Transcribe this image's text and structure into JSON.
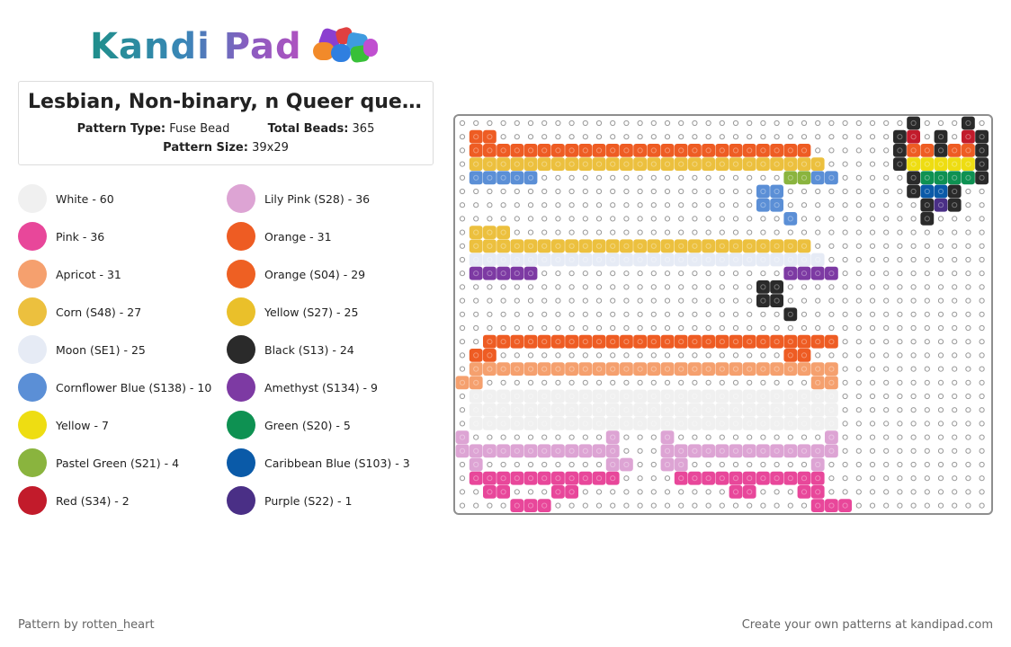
{
  "logo": {
    "text": "Kandi Pad"
  },
  "pattern": {
    "title": "Lesbian, Non-binary, n Queer que...",
    "type_label": "Pattern Type:",
    "type_value": "Fuse Bead",
    "beads_label": "Total Beads:",
    "beads_value": "365",
    "size_label": "Pattern Size:",
    "size_value": "39x29"
  },
  "legend": [
    {
      "label": "White - 60",
      "color": "#f0f0f0"
    },
    {
      "label": "Pink - 36",
      "color": "#e8479a"
    },
    {
      "label": "Apricot - 31",
      "color": "#f5a06e"
    },
    {
      "label": "Corn (S48) - 27",
      "color": "#ecc03e"
    },
    {
      "label": "Moon (SE1) - 25",
      "color": "#e6ebf5"
    },
    {
      "label": "Cornflower Blue (S138) - 10",
      "color": "#5b8fd6"
    },
    {
      "label": "Yellow - 7",
      "color": "#eedd12"
    },
    {
      "label": "Pastel Green (S21) - 4",
      "color": "#8ab43e"
    },
    {
      "label": "Red (S34) - 2",
      "color": "#c21b2b"
    },
    {
      "label": "Lily Pink (S28) - 36",
      "color": "#dda4d4"
    },
    {
      "label": "Orange - 31",
      "color": "#ee5c23"
    },
    {
      "label": "Orange (S04) - 29",
      "color": "#ee6023"
    },
    {
      "label": "Yellow (S27) - 25",
      "color": "#eac02a"
    },
    {
      "label": "Black (S13) - 24",
      "color": "#2a2a2a"
    },
    {
      "label": "Amethyst (S134) - 9",
      "color": "#7d3aa3"
    },
    {
      "label": "Green (S20) - 5",
      "color": "#0e9152"
    },
    {
      "label": "Caribbean Blue (S103) - 3",
      "color": "#0a5aa8"
    },
    {
      "label": "Purple (S22) - 1",
      "color": "#4a2f86"
    }
  ],
  "board_rows": [
    ".................................K...K..",
    ".OO.............................KR.K.RK.",
    ".OOOOOOOOOOOOOOOOOOOOOOOOO......KAAKAAK.",
    ".YYYYYYYYYYYYYYYYYYYYYYYYYY.....KYYYYYK.",
    ".BBBBB..................GGBB.....KGGGGK..",
    "......................BB.........KNNK...",
    "......................BB..........KPK...",
    "........................B.........K.....",
    ".YYY....................................",
    ".YYYYYYYYYYYYYYYYYYYYYYYYY..............",
    ".MMMMMMMMMMMMMMMMMMMMMMMMMM.............",
    ".VVVVV..................VVVV............",
    "......................KK................",
    "......................KK................",
    "........................K...............",
    "........................................",
    "..OOOOOOOOOOOOOOOOOOOOOOOOOO............",
    ".OO.....................OO..............",
    ".AAAAAAAAAAAAAAAAAAAAAAAAAAA............",
    "AA........................AA............",
    ".WWWWWWWWWWWWWWWWWWWWWWWWWWW............",
    ".WWWWWWWWWWWWWWWWWWWWWWWWWWW............",
    ".WWWWWWWWWWWWWWWWWWWWWWWWWWW............",
    "L..........L...L...........L............",
    "LLLLLLLLLLLL...LLLLLLLLLLLLL............",
    ".L.........LL..LL.........L.............",
    ".PPPPPPPPPPP....PPPPPPPPPPP.............",
    "..PP...PP...........PP...PP.............",
    "....PPP...................PPP..........."
  ],
  "footer": {
    "left": "Pattern by rotten_heart",
    "right": "Create your own patterns at kandipad.com"
  }
}
